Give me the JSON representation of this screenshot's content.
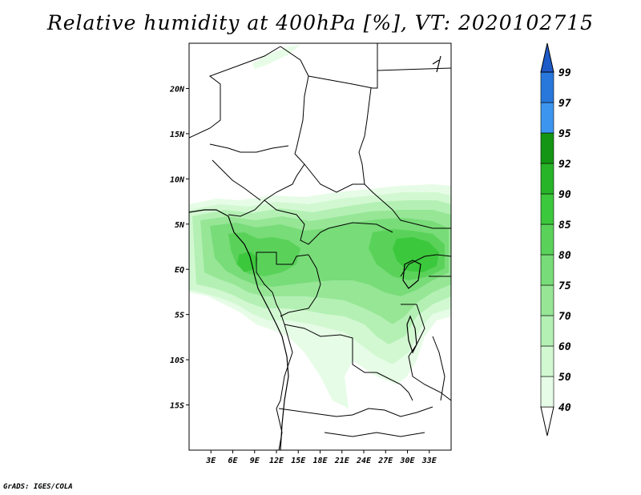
{
  "title": "Relative humidity at 400hPa [%], VT: 2020102715",
  "credit": "GrADS: IGES/COLA",
  "map": {
    "lon_range": [
      0,
      36
    ],
    "lat_range": [
      -20,
      25
    ],
    "lat_ticks": [
      {
        "value": 20,
        "label": "20N"
      },
      {
        "value": 15,
        "label": "15N"
      },
      {
        "value": 10,
        "label": "10N"
      },
      {
        "value": 5,
        "label": "5N"
      },
      {
        "value": 0,
        "label": "EQ"
      },
      {
        "value": -5,
        "label": "5S"
      },
      {
        "value": -10,
        "label": "10S"
      },
      {
        "value": -15,
        "label": "15S"
      }
    ],
    "lon_ticks": [
      {
        "value": 3,
        "label": "3E"
      },
      {
        "value": 6,
        "label": "6E"
      },
      {
        "value": 9,
        "label": "9E"
      },
      {
        "value": 12,
        "label": "12E"
      },
      {
        "value": 15,
        "label": "15E"
      },
      {
        "value": 18,
        "label": "18E"
      },
      {
        "value": 21,
        "label": "21E"
      },
      {
        "value": 24,
        "label": "24E"
      },
      {
        "value": 27,
        "label": "27E"
      },
      {
        "value": 30,
        "label": "30E"
      },
      {
        "value": 33,
        "label": "33E"
      }
    ]
  },
  "colorbar": {
    "levels": [
      "40",
      "50",
      "60",
      "70",
      "75",
      "80",
      "85",
      "90",
      "92",
      "95",
      "97",
      "99"
    ],
    "colors": [
      "#e6fce6",
      "#d2f8d2",
      "#b4f0b4",
      "#96e696",
      "#78dc78",
      "#5ad25a",
      "#3cc83c",
      "#28b428",
      "#149614",
      "#3c96f0",
      "#2878dc",
      "#1e5ac8",
      "#1446b4"
    ]
  }
}
